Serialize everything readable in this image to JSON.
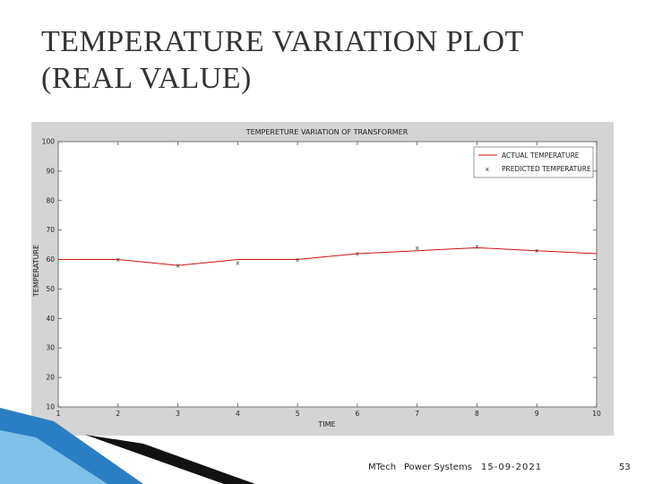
{
  "slide": {
    "title_line1": "TEMPERATURE VARIATION PLOT",
    "title_line2": "(REAL VALUE)"
  },
  "footer": {
    "author": "MTech",
    "topic": "Power Systems",
    "date": "15-09-2021",
    "page": "53"
  },
  "colors": {
    "figure_bg": "#d4d4d4",
    "plot_bg": "#ffffff",
    "actual_line": "#cc1111",
    "predicted_marker": "#333333",
    "deco_blue": "#2a7fc4",
    "deco_dark": "#111111"
  },
  "chart_data": {
    "type": "line",
    "title": "TEMPERETURE VARIATION OF TRANSFORMER",
    "xlabel": "TIME",
    "ylabel": "TEMPERATURE",
    "xlim": [
      1,
      10
    ],
    "ylim": [
      10,
      100
    ],
    "xticks": [
      1,
      2,
      3,
      4,
      5,
      6,
      7,
      8,
      9,
      10
    ],
    "yticks": [
      10,
      20,
      30,
      40,
      50,
      60,
      70,
      80,
      90,
      100
    ],
    "legend_position": "top-right",
    "grid": false,
    "series": [
      {
        "name": "ACTUAL TEMPERATURE",
        "style": "line",
        "x": [
          1,
          2,
          3,
          4,
          5,
          6,
          7,
          8,
          9,
          10
        ],
        "y": [
          60,
          60,
          58,
          60,
          60,
          62,
          63,
          64,
          63,
          62
        ]
      },
      {
        "name": "PREDICTED TEMPERATURE",
        "style": "marker",
        "x": [
          2,
          3,
          4,
          5,
          6,
          7,
          8,
          9
        ],
        "y": [
          60,
          58,
          59,
          60,
          62,
          64,
          64.5,
          63
        ]
      }
    ]
  }
}
